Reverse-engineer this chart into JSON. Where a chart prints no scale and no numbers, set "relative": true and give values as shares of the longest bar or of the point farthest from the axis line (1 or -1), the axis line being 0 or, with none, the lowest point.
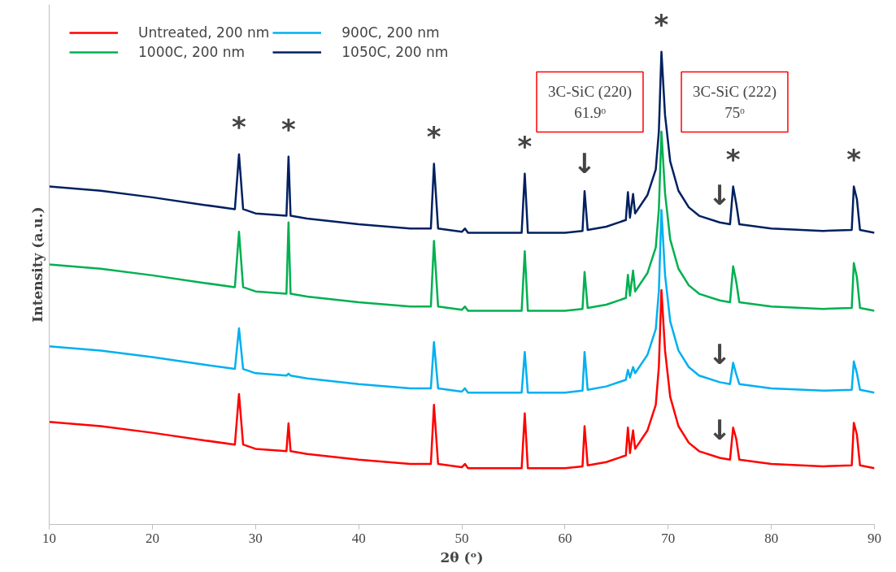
{
  "chart_data": {
    "type": "line",
    "relative": true,
    "xlabel": "2θ (ᵒ)",
    "ylabel": "Intensity (a.u.)",
    "xlim": [
      10,
      90
    ],
    "xticks": [
      10,
      20,
      30,
      40,
      50,
      60,
      70,
      80,
      90
    ],
    "grid": false,
    "legend": "top left",
    "marker": "none",
    "line_style": "solid",
    "x": [
      10,
      15,
      20,
      25,
      28,
      28.4,
      28.8,
      30,
      33,
      33.2,
      33.4,
      35,
      40,
      45,
      47,
      47.3,
      47.7,
      50,
      50.3,
      50.6,
      55.8,
      56.1,
      56.4,
      60,
      61.7,
      61.9,
      62.2,
      64,
      65.9,
      66.1,
      66.3,
      66.6,
      66.8,
      68,
      68.8,
      69.1,
      69.35,
      69.7,
      70.2,
      71,
      72,
      73,
      75,
      76,
      76.3,
      76.6,
      76.9,
      80,
      85,
      87.8,
      88,
      88.3,
      88.6,
      90
    ],
    "series": [
      {
        "name": "Untreated, 200 nm",
        "color": "#ff0000",
        "values": [
          0.217,
          0.208,
          0.194,
          0.178,
          0.169,
          0.276,
          0.169,
          0.16,
          0.155,
          0.214,
          0.155,
          0.149,
          0.137,
          0.128,
          0.128,
          0.253,
          0.128,
          0.121,
          0.128,
          0.119,
          0.119,
          0.235,
          0.119,
          0.119,
          0.123,
          0.208,
          0.125,
          0.132,
          0.146,
          0.205,
          0.151,
          0.199,
          0.16,
          0.199,
          0.253,
          0.333,
          0.496,
          0.368,
          0.27,
          0.208,
          0.173,
          0.155,
          0.141,
          0.137,
          0.205,
          0.181,
          0.137,
          0.128,
          0.123,
          0.125,
          0.215,
          0.19,
          0.125,
          0.119
        ]
      },
      {
        "name": "900C, 200 nm",
        "color": "#00b0f0",
        "values": [
          0.377,
          0.368,
          0.354,
          0.338,
          0.329,
          0.415,
          0.329,
          0.32,
          0.315,
          0.319,
          0.315,
          0.309,
          0.297,
          0.288,
          0.288,
          0.386,
          0.288,
          0.281,
          0.288,
          0.279,
          0.279,
          0.365,
          0.279,
          0.279,
          0.283,
          0.365,
          0.285,
          0.292,
          0.306,
          0.327,
          0.311,
          0.333,
          0.32,
          0.359,
          0.413,
          0.493,
          0.665,
          0.528,
          0.43,
          0.368,
          0.333,
          0.315,
          0.301,
          0.297,
          0.342,
          0.318,
          0.297,
          0.288,
          0.283,
          0.285,
          0.345,
          0.32,
          0.285,
          0.279
        ]
      },
      {
        "name": "1000C, 200 nm",
        "color": "#00b050",
        "values": [
          0.55,
          0.541,
          0.527,
          0.511,
          0.502,
          0.619,
          0.502,
          0.493,
          0.488,
          0.639,
          0.488,
          0.482,
          0.47,
          0.461,
          0.461,
          0.6,
          0.461,
          0.454,
          0.461,
          0.452,
          0.452,
          0.578,
          0.452,
          0.452,
          0.456,
          0.534,
          0.458,
          0.465,
          0.479,
          0.528,
          0.484,
          0.537,
          0.493,
          0.532,
          0.586,
          0.666,
          0.831,
          0.701,
          0.603,
          0.541,
          0.506,
          0.488,
          0.474,
          0.47,
          0.546,
          0.514,
          0.47,
          0.461,
          0.456,
          0.458,
          0.553,
          0.523,
          0.458,
          0.452
        ]
      },
      {
        "name": "1050C, 200 nm",
        "color": "#002060",
        "values": [
          0.715,
          0.706,
          0.692,
          0.676,
          0.667,
          0.783,
          0.667,
          0.658,
          0.653,
          0.778,
          0.653,
          0.647,
          0.635,
          0.626,
          0.626,
          0.763,
          0.626,
          0.619,
          0.626,
          0.617,
          0.617,
          0.742,
          0.617,
          0.617,
          0.621,
          0.705,
          0.623,
          0.63,
          0.644,
          0.703,
          0.649,
          0.699,
          0.658,
          0.697,
          0.751,
          0.831,
          1.0,
          0.866,
          0.768,
          0.706,
          0.671,
          0.653,
          0.639,
          0.635,
          0.715,
          0.679,
          0.635,
          0.626,
          0.621,
          0.623,
          0.715,
          0.688,
          0.623,
          0.617
        ]
      }
    ],
    "annotations": [
      {
        "text": "*",
        "x": 28.4,
        "y": 0.783
      },
      {
        "text": "*",
        "x": 33.2,
        "y": 0.778
      },
      {
        "text": "*",
        "x": 47.3,
        "y": 0.763
      },
      {
        "text": "*",
        "x": 56.1,
        "y": 0.742
      },
      {
        "text": "*",
        "x": 69.35,
        "y": 1.0
      },
      {
        "text": "*",
        "x": 76.3,
        "y": 0.715
      },
      {
        "text": "*",
        "x": 88,
        "y": 0.715
      },
      {
        "text": "↓",
        "x": 61.9,
        "y": 0.705
      },
      {
        "text": "↓",
        "x": 75,
        "y": 0.639
      },
      {
        "text": "↓",
        "x": 75,
        "y": 0.301
      },
      {
        "text": "↓",
        "x": 75,
        "y": 0.141
      },
      "3C-SiC (220)\n61.9ᵒ",
      "3C-SiC (222)\n75ᵒ"
    ]
  }
}
